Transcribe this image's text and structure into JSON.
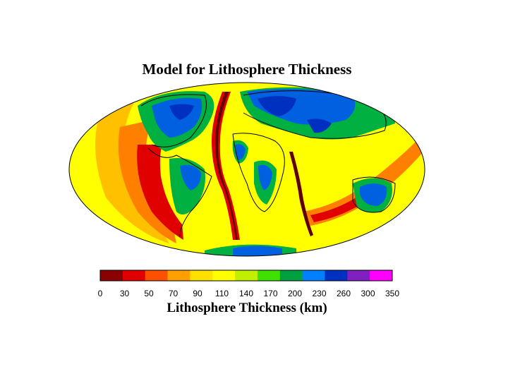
{
  "title": "Model for Lithosphere Thickness",
  "colorbar": {
    "title": "Lithosphere Thickness (km)",
    "tick_labels": [
      "0",
      "30",
      "50",
      "70",
      "90",
      "110",
      "140",
      "170",
      "200",
      "230",
      "260",
      "300",
      "350"
    ],
    "colors": [
      "#8b0000",
      "#e00000",
      "#ff5000",
      "#ffa000",
      "#ffe000",
      "#ffff00",
      "#c0f000",
      "#40e000",
      "#00a040",
      "#0080ff",
      "#0030c0",
      "#8020c0",
      "#ff00ff"
    ]
  },
  "map_colors": {
    "ocean_background": "#ffff00",
    "continent_shield": "#0060e0",
    "continent_core": "#0030c0",
    "craton_green": "#00b040",
    "ridge_dark": "#600000",
    "ridge_red": "#e00000",
    "orange": "#ff8000"
  }
}
